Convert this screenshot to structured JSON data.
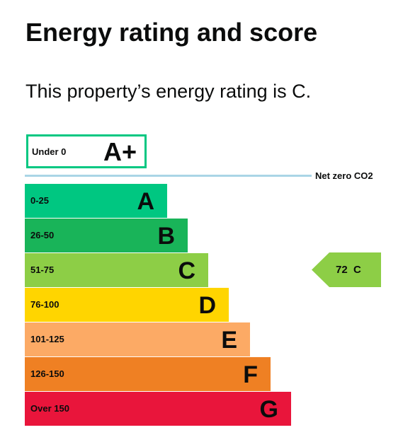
{
  "heading": "Energy rating and score",
  "summary": "This property’s energy rating is C.",
  "aplus": {
    "range": "Under 0",
    "letter": "A+",
    "color": "#00c781"
  },
  "net_zero_label": "Net zero CO2",
  "bands": [
    {
      "range": "0-25",
      "letter": "A",
      "color": "#00c781"
    },
    {
      "range": "26-50",
      "letter": "B",
      "color": "#19b459"
    },
    {
      "range": "51-75",
      "letter": "C",
      "color": "#8dce46"
    },
    {
      "range": "76-100",
      "letter": "D",
      "color": "#ffd500"
    },
    {
      "range": "101-125",
      "letter": "E",
      "color": "#fcaa65"
    },
    {
      "range": "126-150",
      "letter": "F",
      "color": "#ef8023"
    },
    {
      "range": "Over 150",
      "letter": "G",
      "color": "#e9153b"
    }
  ],
  "current": {
    "score": "72",
    "letter": "C",
    "color": "#8dce46"
  }
}
